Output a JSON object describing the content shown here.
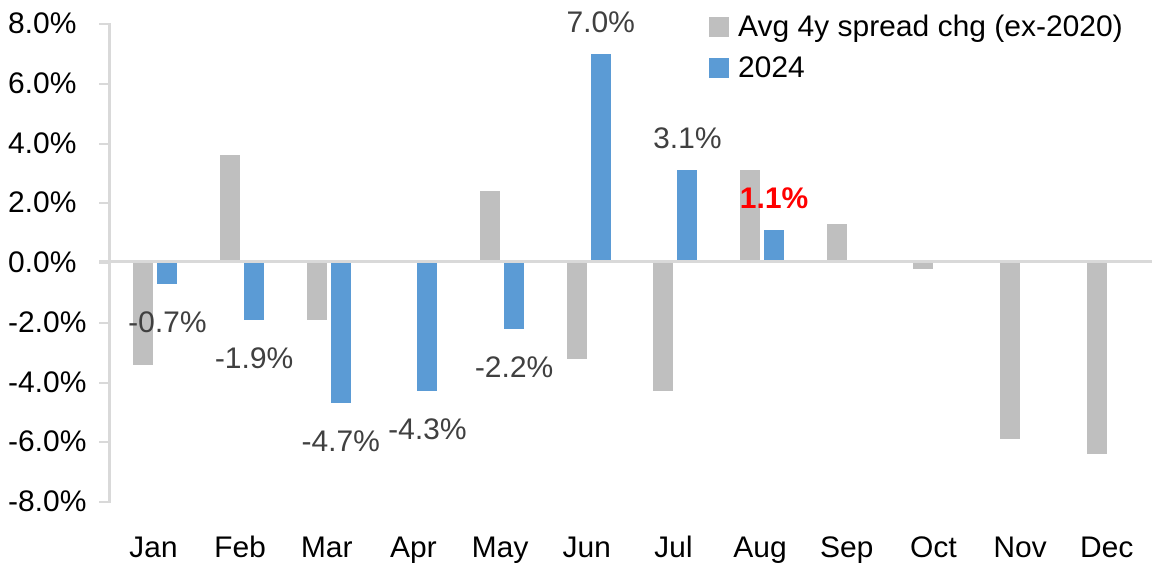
{
  "chart_data": {
    "type": "bar",
    "title": "",
    "categories": [
      "Jan",
      "Feb",
      "Mar",
      "Apr",
      "May",
      "Jun",
      "Jul",
      "Aug",
      "Sep",
      "Oct",
      "Nov",
      "Dec"
    ],
    "series": [
      {
        "name": "Avg 4y spread chg (ex-2020)",
        "color": "#bfbfbf",
        "values": [
          -3.4,
          3.6,
          -1.9,
          0.0,
          2.4,
          -3.2,
          -4.3,
          3.1,
          1.3,
          -0.2,
          -5.9,
          -6.4
        ]
      },
      {
        "name": "2024",
        "color": "#5b9bd5",
        "values": [
          -0.7,
          -1.9,
          -4.7,
          -4.3,
          -2.2,
          7.0,
          3.1,
          1.1,
          null,
          null,
          null,
          null
        ]
      }
    ],
    "data_labels": [
      {
        "category_index": 0,
        "series": "2024",
        "text": "-0.7%",
        "color": "#404040",
        "bold": false
      },
      {
        "category_index": 1,
        "series": "2024",
        "text": "-1.9%",
        "color": "#404040",
        "bold": false
      },
      {
        "category_index": 2,
        "series": "2024",
        "text": "-4.7%",
        "color": "#404040",
        "bold": false
      },
      {
        "category_index": 3,
        "series": "2024",
        "text": "-4.3%",
        "color": "#404040",
        "bold": false
      },
      {
        "category_index": 4,
        "series": "2024",
        "text": "-2.2%",
        "color": "#404040",
        "bold": false
      },
      {
        "category_index": 5,
        "series": "2024",
        "text": "7.0%",
        "color": "#404040",
        "bold": false
      },
      {
        "category_index": 6,
        "series": "2024",
        "text": "3.1%",
        "color": "#404040",
        "bold": false
      },
      {
        "category_index": 7,
        "series": "2024",
        "text": "1.1%",
        "color": "#ff0000",
        "bold": true
      }
    ],
    "y_axis": {
      "min": -8,
      "max": 8,
      "tick_step": 2,
      "format": "percent",
      "ticks": [
        {
          "label": "8.0%",
          "value": 8
        },
        {
          "label": "6.0%",
          "value": 6
        },
        {
          "label": "4.0%",
          "value": 4
        },
        {
          "label": "2.0%",
          "value": 2
        },
        {
          "label": "0.0%",
          "value": 0
        },
        {
          "label": "-2.0%",
          "value": -2
        },
        {
          "label": "-4.0%",
          "value": -4
        },
        {
          "label": "-6.0%",
          "value": -6
        },
        {
          "label": "-8.0%",
          "value": -8
        }
      ]
    },
    "x_axis": {
      "label": ""
    },
    "legend": {
      "position": "top-right"
    },
    "grid": false,
    "colors": {
      "axis_line": "#d9d9d9",
      "tick_text": "#000000",
      "data_label": "#404040",
      "highlight": "#ff0000",
      "background": "#ffffff"
    }
  }
}
